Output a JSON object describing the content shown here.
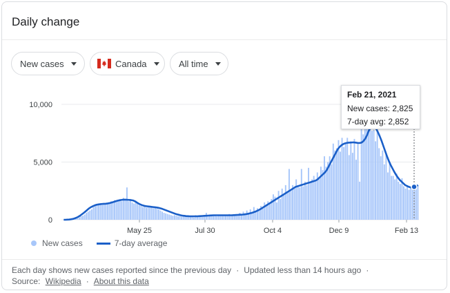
{
  "header": {
    "title": "Daily change"
  },
  "filters": {
    "metric": "New cases",
    "region": "Canada",
    "range": "All time"
  },
  "chart_data": {
    "type": "bar",
    "ylim": [
      0,
      10000
    ],
    "yticks": [
      {
        "value": 10000,
        "label": "10,000"
      },
      {
        "value": 5000,
        "label": "5,000"
      },
      {
        "value": 0,
        "label": "0"
      }
    ],
    "xticks": [
      "May 25",
      "Jul 30",
      "Oct 4",
      "Dec 9",
      "Feb 13"
    ],
    "series": [
      {
        "name": "New cases",
        "values": [
          0,
          0,
          5,
          10,
          20,
          30,
          60,
          80,
          120,
          200,
          300,
          350,
          450,
          600,
          700,
          800,
          900,
          1100,
          1200,
          1300,
          1350,
          1400,
          1300,
          1450,
          1400,
          1350,
          1500,
          1600,
          1500,
          1700,
          1650,
          1750,
          1800,
          1600,
          1900,
          1700,
          2800,
          1600,
          1800,
          1500,
          1400,
          1650,
          1400,
          1250,
          1200,
          1100,
          1150,
          1050,
          1100,
          1050,
          1100,
          1000,
          1050,
          950,
          900,
          800,
          700,
          600,
          550,
          500,
          450,
          400,
          350,
          400,
          350,
          300,
          300,
          280,
          300,
          260,
          300,
          250,
          280,
          300,
          200,
          400,
          250,
          300,
          350,
          330,
          400,
          600,
          350,
          450,
          330,
          420,
          350,
          300,
          430,
          380,
          350,
          400,
          450,
          350,
          500,
          400,
          450,
          400,
          500,
          450,
          600,
          400,
          700,
          500,
          800,
          550,
          900,
          600,
          1100,
          700,
          1000,
          900,
          1200,
          1100,
          1500,
          1200,
          1600,
          1500,
          1800,
          2200,
          2000,
          1500,
          2500,
          1800,
          2700,
          2200,
          3000,
          2400,
          4400,
          2500,
          3000,
          2700,
          3500,
          3000,
          2800,
          4400,
          2900,
          3300,
          3000,
          4500,
          3200,
          3500,
          3800,
          3300,
          4100,
          3600,
          4600,
          4300,
          5500,
          4600,
          5000,
          5500,
          4800,
          6600,
          6000,
          6200,
          6900,
          5900,
          7100,
          6300,
          6600,
          7100,
          5600,
          6800,
          5800,
          7000,
          5200,
          6600,
          3300,
          8300,
          7400,
          8200,
          9200,
          8400,
          8000,
          7700,
          7800,
          6800,
          8000,
          6200,
          5500,
          6000,
          4800,
          5700,
          4100,
          5000,
          3800,
          3800,
          3500,
          4000,
          3300,
          3100,
          3600,
          2900,
          2700,
          3000,
          2600,
          2800,
          3000,
          2800,
          2900,
          3000
        ]
      },
      {
        "name": "7-day average",
        "values": [
          0,
          0,
          10,
          20,
          40,
          70,
          120,
          180,
          260,
          360,
          480,
          600,
          730,
          870,
          1000,
          1100,
          1180,
          1250,
          1300,
          1330,
          1350,
          1370,
          1380,
          1390,
          1410,
          1440,
          1480,
          1530,
          1580,
          1630,
          1670,
          1700,
          1730,
          1740,
          1740,
          1730,
          1720,
          1700,
          1670,
          1600,
          1500,
          1400,
          1320,
          1260,
          1210,
          1180,
          1160,
          1140,
          1120,
          1100,
          1080,
          1060,
          1030,
          990,
          940,
          880,
          820,
          760,
          700,
          640,
          580,
          520,
          470,
          430,
          390,
          360,
          340,
          320,
          310,
          300,
          300,
          300,
          300,
          300,
          310,
          320,
          330,
          340,
          350,
          360,
          370,
          380,
          390,
          390,
          390,
          390,
          390,
          390,
          390,
          390,
          390,
          390,
          390,
          400,
          410,
          420,
          430,
          440,
          450,
          470,
          490,
          520,
          560,
          600,
          650,
          710,
          780,
          860,
          950,
          1050,
          1150,
          1250,
          1350,
          1450,
          1550,
          1650,
          1750,
          1850,
          1950,
          2050,
          2150,
          2250,
          2350,
          2450,
          2550,
          2650,
          2750,
          2850,
          2900,
          2950,
          3000,
          3050,
          3100,
          3150,
          3200,
          3250,
          3300,
          3350,
          3400,
          3500,
          3650,
          3800,
          3950,
          4100,
          4300,
          4600,
          4900,
          5200,
          5500,
          5800,
          6100,
          6300,
          6450,
          6550,
          6620,
          6660,
          6680,
          6690,
          6700,
          6700,
          6680,
          6660,
          6650,
          6680,
          6800,
          7000,
          7300,
          7700,
          8000,
          8100,
          8050,
          7900,
          7600,
          7250,
          6850,
          6400,
          5950,
          5500,
          5100,
          4750,
          4450,
          4150,
          3880,
          3650,
          3450,
          3300,
          3150,
          3000,
          2920,
          2850,
          2800,
          2800,
          2852,
          2900,
          3000
        ]
      }
    ]
  },
  "tooltip": {
    "date": "Feb 21, 2021",
    "new_cases": "New cases: 2,825",
    "avg": "7-day avg: 2,852"
  },
  "legend": {
    "cases": "New cases",
    "avg": "7-day average"
  },
  "footer": {
    "line1_a": "Each day shows new cases reported since the previous day",
    "line1_b": "Updated less than 14 hours ago",
    "source_label": "Source:",
    "source_link": "Wikipedia",
    "about_link": "About this data",
    "sep": "·"
  },
  "colors": {
    "bars": "#a8c7fa",
    "line": "#1a5fc8",
    "grid": "#e8eaed"
  }
}
